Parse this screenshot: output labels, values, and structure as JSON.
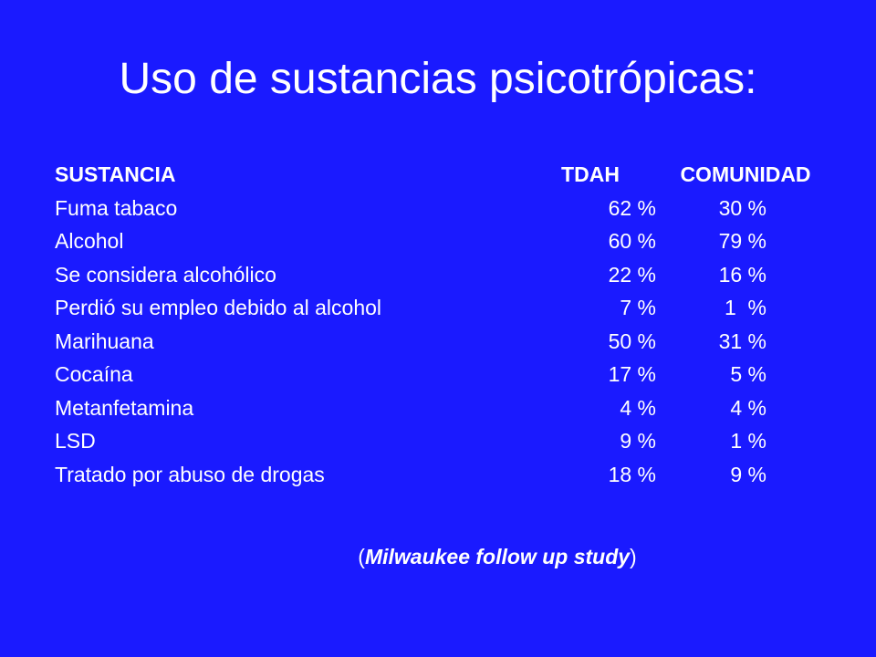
{
  "slide": {
    "title": "Uso de sustancias psicotrópicas:"
  },
  "table": {
    "headers": {
      "substance": "SUSTANCIA",
      "tdah": "TDAH",
      "community": "COMUNIDAD"
    },
    "rows": [
      {
        "substance": "Fuma tabaco",
        "tdah": "62 %",
        "community": "30 %"
      },
      {
        "substance": "Alcohol",
        "tdah": "60 %",
        "community": "79 %"
      },
      {
        "substance": "Se considera alcohólico",
        "tdah": "22 %",
        "community": "16 %"
      },
      {
        "substance": "Perdió su empleo debido al alcohol",
        "tdah": "7 %",
        "community": "1  %"
      },
      {
        "substance": "Marihuana",
        "tdah": "50 %",
        "community": "31 %"
      },
      {
        "substance": "Cocaína",
        "tdah": "17 %",
        "community": "5 %"
      },
      {
        "substance": "Metanfetamina",
        "tdah": "4 %",
        "community": "4 %"
      },
      {
        "substance": "LSD",
        "tdah": "9 %",
        "community": "1 %"
      },
      {
        "substance": "Tratado por abuso de drogas",
        "tdah": "18 %",
        "community": "9 %"
      }
    ]
  },
  "footnote": {
    "open": "(",
    "study": "Milwaukee follow up study",
    "close": ")"
  },
  "colors": {
    "background": "#1a1aff",
    "text": "#ffffff"
  }
}
